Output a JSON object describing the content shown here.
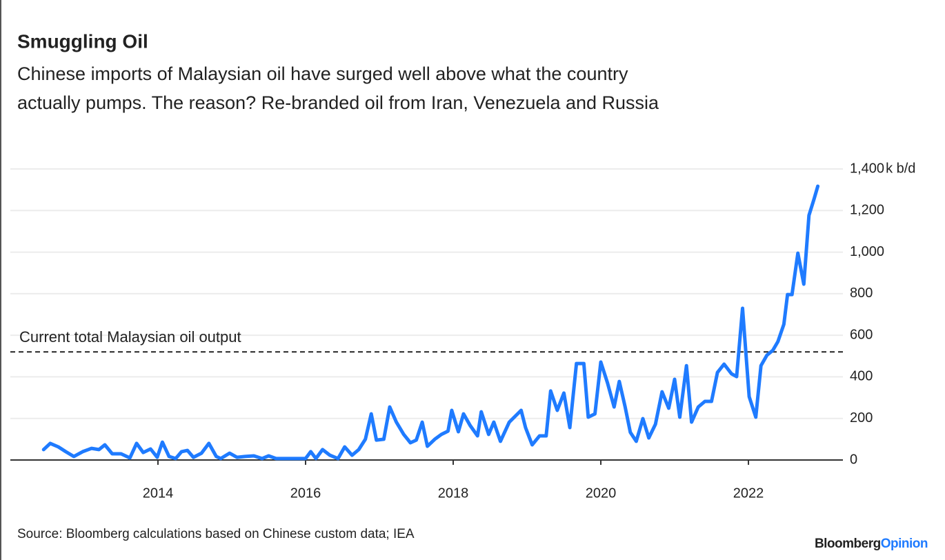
{
  "chart_data": {
    "type": "line",
    "title": "Smuggling Oil",
    "subtitle": [
      "Chinese imports of Malaysian oil have surged well above what the country",
      "actually pumps. The reason? Re-branded oil from Iran, Venezuela and Russia"
    ],
    "y_unit": "k b/d",
    "source": "Source: Bloomberg calculations based on Chinese custom data; IEA",
    "brand": [
      "Bloomberg",
      "Opinion"
    ],
    "color": "#1f7bff",
    "grid": true,
    "reference_line": {
      "value": 520,
      "label": "Current total Malaysian oil output"
    },
    "xlim": [
      2012,
      2023.28
    ],
    "xticks": [
      2014,
      2016,
      2018,
      2020,
      2022
    ],
    "ylim": [
      0,
      1400
    ],
    "yticks": [
      0,
      200,
      400,
      600,
      800,
      {
        "value": 1000,
        "label": "1,000"
      },
      {
        "value": 1200,
        "label": "1,200"
      },
      {
        "value": 1400,
        "label": "1,400"
      }
    ],
    "x": [
      2012.45,
      2012.54,
      2012.65,
      2012.75,
      2012.86,
      2012.98,
      2013.1,
      2013.2,
      2013.28,
      2013.38,
      2013.5,
      2013.62,
      2013.71,
      2013.8,
      2013.9,
      2013.99,
      2014.06,
      2014.15,
      2014.24,
      2014.32,
      2014.4,
      2014.48,
      2014.59,
      2014.69,
      2014.79,
      2014.85,
      2014.97,
      2015.07,
      2015.18,
      2015.3,
      2015.41,
      2015.5,
      2015.6,
      2016.0,
      2016.07,
      2016.14,
      2016.23,
      2016.33,
      2016.44,
      2016.53,
      2016.63,
      2016.72,
      2016.81,
      2016.89,
      2016.96,
      2017.06,
      2017.14,
      2017.23,
      2017.33,
      2017.42,
      2017.5,
      2017.58,
      2017.65,
      2017.75,
      2017.84,
      2017.93,
      2017.98,
      2018.07,
      2018.14,
      2018.23,
      2018.33,
      2018.38,
      2018.48,
      2018.55,
      2018.64,
      2018.76,
      2018.92,
      2018.98,
      2019.07,
      2019.17,
      2019.26,
      2019.32,
      2019.41,
      2019.5,
      2019.58,
      2019.67,
      2019.77,
      2019.83,
      2019.92,
      2020.0,
      2020.09,
      2020.18,
      2020.25,
      2020.33,
      2020.4,
      2020.48,
      2020.57,
      2020.65,
      2020.74,
      2020.83,
      2020.92,
      2021.0,
      2021.07,
      2021.16,
      2021.23,
      2021.32,
      2021.41,
      2021.5,
      2021.58,
      2021.67,
      2021.77,
      2021.84,
      2021.92,
      2022.01,
      2022.1,
      2022.17,
      2022.25,
      2022.33,
      2022.4,
      2022.48,
      2022.53,
      2022.59,
      2022.67,
      2022.75,
      2022.82,
      2022.89,
      2022.94
    ],
    "values": [
      50,
      80,
      63,
      40,
      17,
      40,
      56,
      50,
      73,
      30,
      30,
      10,
      80,
      36,
      53,
      13,
      86,
      17,
      7,
      40,
      46,
      13,
      33,
      80,
      17,
      7,
      33,
      13,
      17,
      20,
      7,
      20,
      7,
      7,
      40,
      7,
      50,
      23,
      7,
      63,
      23,
      50,
      100,
      222,
      96,
      100,
      255,
      182,
      123,
      83,
      96,
      182,
      66,
      100,
      123,
      139,
      239,
      136,
      222,
      166,
      116,
      232,
      123,
      182,
      90,
      182,
      239,
      156,
      73,
      116,
      116,
      332,
      239,
      322,
      156,
      464,
      464,
      206,
      222,
      471,
      371,
      255,
      378,
      255,
      133,
      90,
      199,
      106,
      172,
      328,
      249,
      388,
      206,
      454,
      182,
      255,
      282,
      282,
      421,
      461,
      415,
      401,
      730,
      305,
      206,
      454,
      504,
      527,
      570,
      653,
      796,
      796,
      995,
      846,
      1177,
      1257,
      1317
    ]
  }
}
